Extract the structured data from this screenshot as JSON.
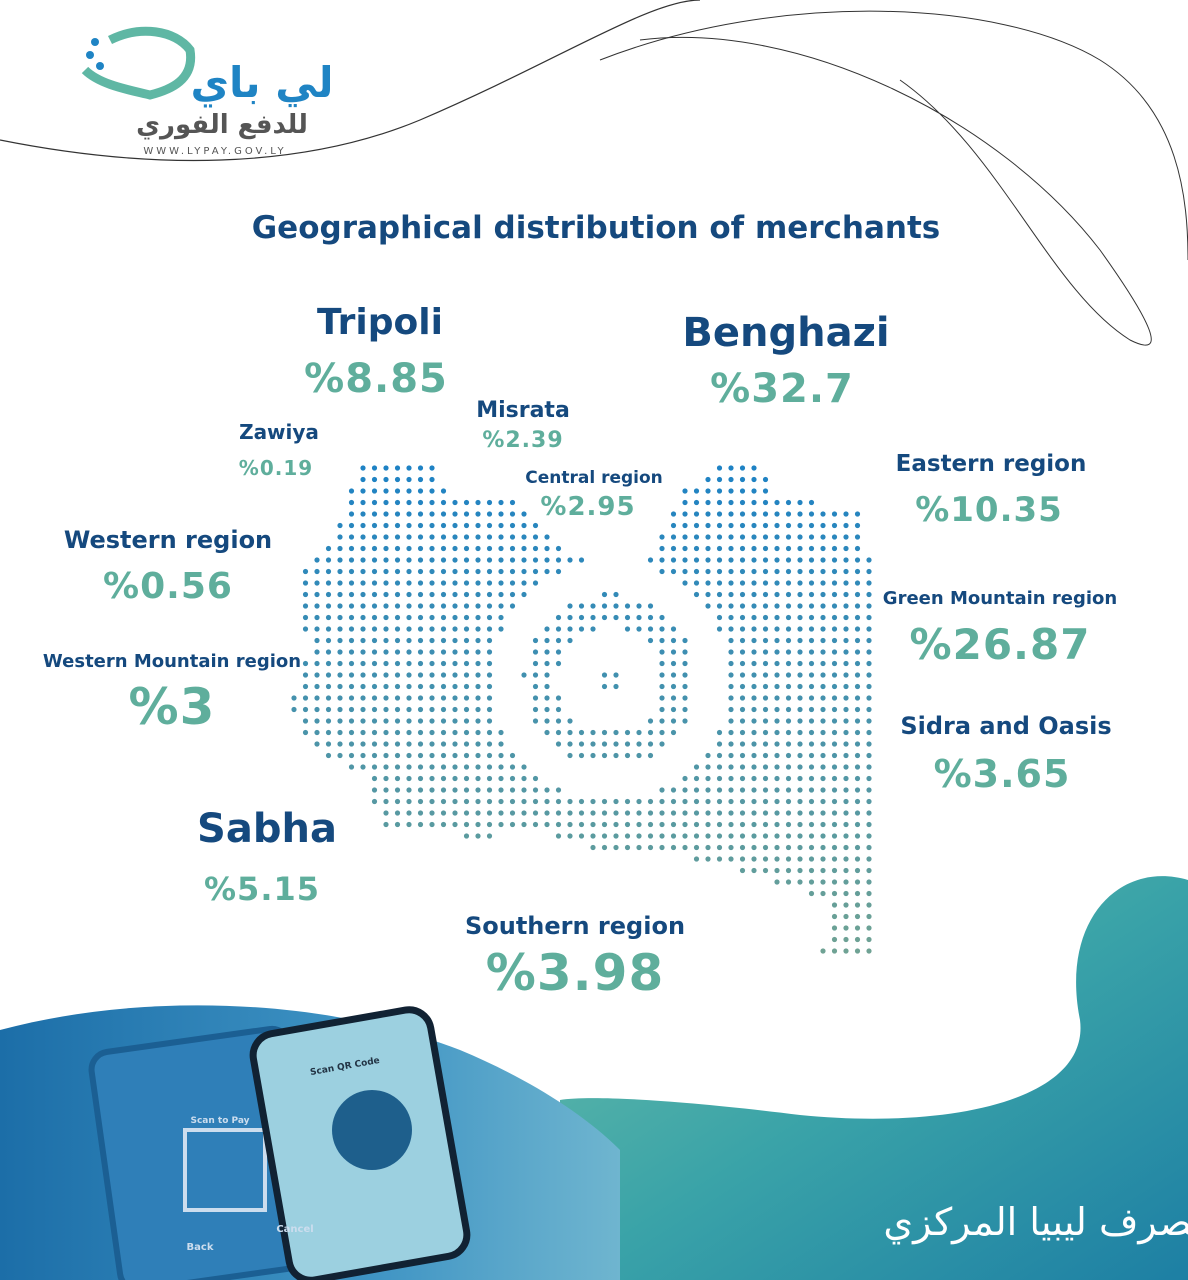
{
  "header": {
    "logo_name": "لي باي",
    "logo_tagline": "للدفع الفوري",
    "website": "WWW.LYPAY.GOV.LY"
  },
  "title": "Geographical distribution of merchants",
  "regions": [
    {
      "name": "Tripoli",
      "value": "%8.85"
    },
    {
      "name": "Benghazi",
      "value": "%32.7"
    },
    {
      "name": "Misrata",
      "value": "%2.39"
    },
    {
      "name": "Zawiya",
      "value": "%0.19"
    },
    {
      "name": "Central region",
      "value": "%2.95"
    },
    {
      "name": "Eastern region",
      "value": "%10.35"
    },
    {
      "name": "Western region",
      "value": "%0.56"
    },
    {
      "name": "Green Mountain region",
      "value": "%26.87"
    },
    {
      "name": "Western Mountain region",
      "value": "%3"
    },
    {
      "name": "Sidra and Oasis",
      "value": "%3.65"
    },
    {
      "name": "Sabha",
      "value": "%5.15"
    },
    {
      "name": "Southern region",
      "value": "%3.98"
    }
  ],
  "phone": {
    "scan_title": "Scan QR Code",
    "scan_to_pay": "Scan to Pay",
    "back": "Back",
    "cancel": "Cancel"
  },
  "footer": {
    "bank": "مصرف ليبيا المركزي"
  }
}
